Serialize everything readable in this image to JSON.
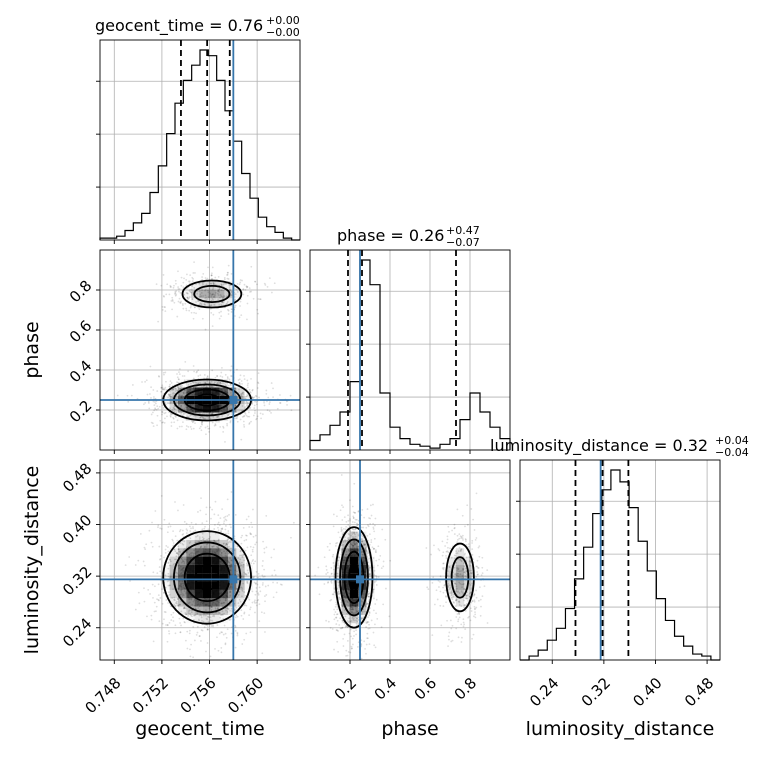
{
  "chart_data": {
    "type": "corner",
    "parameters": [
      {
        "name": "geocent_time",
        "label": "geocent_time",
        "range": [
          0.7468,
          0.7636
        ],
        "ticks": [
          0.748,
          0.752,
          0.756,
          0.76
        ],
        "tick_labels": [
          "0.748",
          "0.752",
          "0.756",
          "0.760"
        ],
        "truth": 0.758,
        "quantiles": [
          0.7536,
          0.7558,
          0.7577
        ],
        "title_main": "geocent_time = 0.76",
        "title_plus": "+0.00",
        "title_minus": "−0.00",
        "hist_edges_from": 0.7468,
        "hist_edges_to": 0.7636,
        "hist": [
          0.01,
          0.01,
          0.02,
          0.05,
          0.09,
          0.14,
          0.25,
          0.39,
          0.56,
          0.72,
          0.84,
          0.92,
          1.0,
          0.97,
          0.84,
          0.68,
          0.52,
          0.35,
          0.22,
          0.12,
          0.07,
          0.04,
          0.01,
          0.0
        ]
      },
      {
        "name": "phase",
        "label": "phase",
        "range": [
          0.0,
          1.0
        ],
        "ticks": [
          0.2,
          0.4,
          0.6,
          0.8
        ],
        "tick_labels": [
          "0.2",
          "0.4",
          "0.6",
          "0.8"
        ],
        "truth": 0.25,
        "quantiles": [
          0.19,
          0.26,
          0.73
        ],
        "title_main": "phase = 0.26",
        "title_plus": "+0.47",
        "title_minus": "−0.07",
        "hist_edges_from": 0.0,
        "hist_edges_to": 1.0,
        "hist": [
          0.05,
          0.08,
          0.13,
          0.2,
          0.36,
          1.0,
          0.87,
          0.3,
          0.12,
          0.06,
          0.03,
          0.02,
          0.01,
          0.03,
          0.06,
          0.16,
          0.3,
          0.2,
          0.12,
          0.06
        ]
      },
      {
        "name": "luminosity_distance",
        "label": "luminosity_distance",
        "range": [
          0.19,
          0.5
        ],
        "ticks": [
          0.24,
          0.32,
          0.4,
          0.48
        ],
        "tick_labels": [
          "0.24",
          "0.32",
          "0.40",
          "0.48"
        ],
        "truth": 0.315,
        "quantiles": [
          0.276,
          0.318,
          0.358
        ],
        "title_main": "luminosity_distance = 0.32",
        "title_plus": "+0.04",
        "title_minus": "−0.04",
        "hist_edges_from": 0.19,
        "hist_edges_to": 0.5,
        "hist": [
          0.0,
          0.02,
          0.05,
          0.1,
          0.16,
          0.26,
          0.41,
          0.57,
          0.74,
          0.86,
          0.96,
          0.9,
          0.77,
          0.6,
          0.45,
          0.31,
          0.2,
          0.12,
          0.07,
          0.03,
          0.02,
          0.0
        ]
      }
    ],
    "contours_2d": [
      {
        "x": "geocent_time",
        "y": "phase",
        "modes": [
          {
            "center": [
              0.7558,
              0.25
            ],
            "sigma": [
              0.0018,
              0.05
            ],
            "weight": 1.0
          },
          {
            "center": [
              0.7562,
              0.78
            ],
            "sigma": [
              0.0016,
              0.045
            ],
            "weight": 0.35
          }
        ]
      },
      {
        "x": "geocent_time",
        "y": "luminosity_distance",
        "modes": [
          {
            "center": [
              0.7558,
              0.318
            ],
            "sigma": [
              0.0018,
              0.035
            ],
            "weight": 1.0
          }
        ]
      },
      {
        "x": "phase",
        "y": "luminosity_distance",
        "modes": [
          {
            "center": [
              0.22,
              0.318
            ],
            "sigma": [
              0.045,
              0.038
            ],
            "weight": 1.0
          },
          {
            "center": [
              0.75,
              0.318
            ],
            "sigma": [
              0.045,
              0.035
            ],
            "weight": 0.35
          }
        ]
      }
    ],
    "grid": true,
    "truth_color": "#3776ab",
    "contour_color": "#000000"
  }
}
